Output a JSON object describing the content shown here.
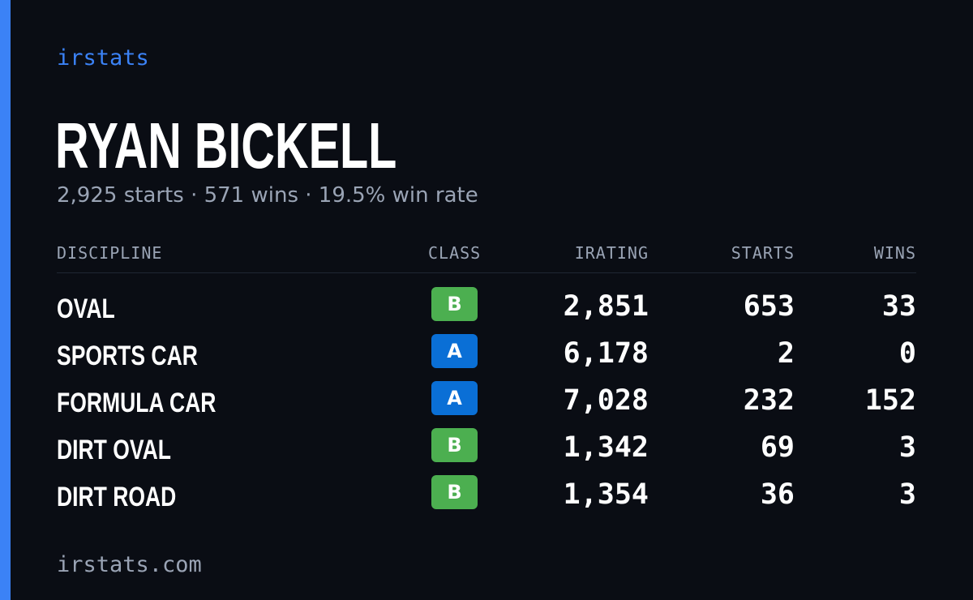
{
  "brand": "irstats",
  "driver_name": "RYAN BICKELL",
  "summary": "2,925 starts · 571 wins · 19.5% win rate",
  "colors": {
    "accent": "#3b82f6",
    "background": "#0a0d14",
    "class_A": "#0a6fd6",
    "class_B": "#4caf50"
  },
  "table": {
    "headers": {
      "discipline": "DISCIPLINE",
      "class": "CLASS",
      "irating": "IRATING",
      "starts": "STARTS",
      "wins": "WINS"
    },
    "rows": [
      {
        "discipline": "OVAL",
        "class": "B",
        "irating": "2,851",
        "starts": "653",
        "wins": "33"
      },
      {
        "discipline": "SPORTS CAR",
        "class": "A",
        "irating": "6,178",
        "starts": "2",
        "wins": "0"
      },
      {
        "discipline": "FORMULA CAR",
        "class": "A",
        "irating": "7,028",
        "starts": "232",
        "wins": "152"
      },
      {
        "discipline": "DIRT OVAL",
        "class": "B",
        "irating": "1,342",
        "starts": "69",
        "wins": "3"
      },
      {
        "discipline": "DIRT ROAD",
        "class": "B",
        "irating": "1,354",
        "starts": "36",
        "wins": "3"
      }
    ]
  },
  "footer": "irstats.com"
}
